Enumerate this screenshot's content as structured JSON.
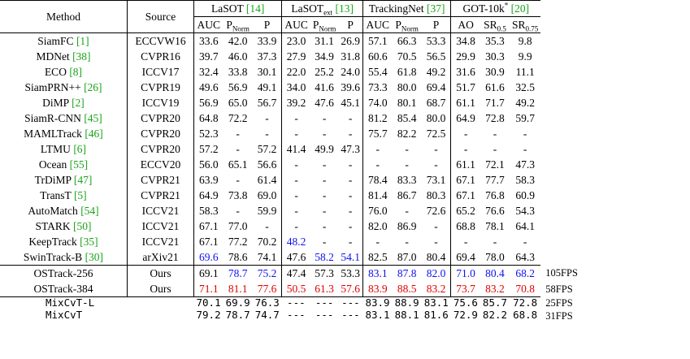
{
  "headers": {
    "method": "Method",
    "source": "Source",
    "groups": [
      {
        "name": "LaSOT",
        "sub": "",
        "sup": "",
        "cite": "[14]"
      },
      {
        "name": "LaSOT",
        "sub": "ext",
        "sup": "",
        "cite": "[13]"
      },
      {
        "name": "TrackingNet",
        "sub": "",
        "sup": "",
        "cite": "[37]"
      },
      {
        "name": "GOT-10k",
        "sub": "",
        "sup": "*",
        "cite": "[20]"
      }
    ],
    "metrics": [
      {
        "t": "AUC",
        "sub": ""
      },
      {
        "t": "P",
        "sub": "Norm"
      },
      {
        "t": "P",
        "sub": ""
      },
      {
        "t": "AUC",
        "sub": ""
      },
      {
        "t": "P",
        "sub": "Norm"
      },
      {
        "t": "P",
        "sub": ""
      },
      {
        "t": "AUC",
        "sub": ""
      },
      {
        "t": "P",
        "sub": "Norm"
      },
      {
        "t": "P",
        "sub": ""
      },
      {
        "t": "AO",
        "sub": ""
      },
      {
        "t": "SR",
        "sub": "0.5"
      },
      {
        "t": "SR",
        "sub": "0.75"
      }
    ]
  },
  "rows": [
    {
      "method": "SiamFC",
      "cite": "[1]",
      "source": "ECCVW16",
      "values": [
        "33.6",
        "42.0",
        "33.9",
        "23.0",
        "31.1",
        "26.9",
        "57.1",
        "66.3",
        "53.3",
        "34.8",
        "35.3",
        "9.8"
      ],
      "styles": {}
    },
    {
      "method": "MDNet",
      "cite": "[38]",
      "source": "CVPR16",
      "values": [
        "39.7",
        "46.0",
        "37.3",
        "27.9",
        "34.9",
        "31.8",
        "60.6",
        "70.5",
        "56.5",
        "29.9",
        "30.3",
        "9.9"
      ],
      "styles": {}
    },
    {
      "method": "ECO",
      "cite": "[8]",
      "source": "ICCV17",
      "values": [
        "32.4",
        "33.8",
        "30.1",
        "22.0",
        "25.2",
        "24.0",
        "55.4",
        "61.8",
        "49.2",
        "31.6",
        "30.9",
        "11.1"
      ],
      "styles": {}
    },
    {
      "method": "SiamPRN++",
      "cite": "[26]",
      "source": "CVPR19",
      "values": [
        "49.6",
        "56.9",
        "49.1",
        "34.0",
        "41.6",
        "39.6",
        "73.3",
        "80.0",
        "69.4",
        "51.7",
        "61.6",
        "32.5"
      ],
      "styles": {}
    },
    {
      "method": "DiMP",
      "cite": "[2]",
      "source": "ICCV19",
      "values": [
        "56.9",
        "65.0",
        "56.7",
        "39.2",
        "47.6",
        "45.1",
        "74.0",
        "80.1",
        "68.7",
        "61.1",
        "71.7",
        "49.2"
      ],
      "styles": {}
    },
    {
      "method": "SiamR-CNN",
      "cite": "[45]",
      "source": "CVPR20",
      "values": [
        "64.8",
        "72.2",
        "-",
        "-",
        "-",
        "-",
        "81.2",
        "85.4",
        "80.0",
        "64.9",
        "72.8",
        "59.7"
      ],
      "styles": {}
    },
    {
      "method": "MAMLTrack",
      "cite": "[46]",
      "source": "CVPR20",
      "values": [
        "52.3",
        "-",
        "-",
        "-",
        "-",
        "-",
        "75.7",
        "82.2",
        "72.5",
        "-",
        "-",
        "-"
      ],
      "styles": {}
    },
    {
      "method": "LTMU",
      "cite": "[6]",
      "source": "CVPR20",
      "values": [
        "57.2",
        "-",
        "57.2",
        "41.4",
        "49.9",
        "47.3",
        "-",
        "-",
        "-",
        "-",
        "-",
        "-"
      ],
      "styles": {}
    },
    {
      "method": "Ocean",
      "cite": "[55]",
      "source": "ECCV20",
      "values": [
        "56.0",
        "65.1",
        "56.6",
        "-",
        "-",
        "-",
        "-",
        "-",
        "-",
        "61.1",
        "72.1",
        "47.3"
      ],
      "styles": {}
    },
    {
      "method": "TrDiMP",
      "cite": "[47]",
      "source": "CVPR21",
      "values": [
        "63.9",
        "-",
        "61.4",
        "-",
        "-",
        "-",
        "78.4",
        "83.3",
        "73.1",
        "67.1",
        "77.7",
        "58.3"
      ],
      "styles": {}
    },
    {
      "method": "TransT",
      "cite": "[5]",
      "source": "CVPR21",
      "values": [
        "64.9",
        "73.8",
        "69.0",
        "-",
        "-",
        "-",
        "81.4",
        "86.7",
        "80.3",
        "67.1",
        "76.8",
        "60.9"
      ],
      "styles": {}
    },
    {
      "method": "AutoMatch",
      "cite": "[54]",
      "source": "ICCV21",
      "values": [
        "58.3",
        "-",
        "59.9",
        "-",
        "-",
        "-",
        "76.0",
        "-",
        "72.6",
        "65.2",
        "76.6",
        "54.3"
      ],
      "styles": {}
    },
    {
      "method": "STARK",
      "cite": "[50]",
      "source": "ICCV21",
      "values": [
        "67.1",
        "77.0",
        "-",
        "-",
        "-",
        "-",
        "82.0",
        "86.9",
        "-",
        "68.8",
        "78.1",
        "64.1"
      ],
      "styles": {}
    },
    {
      "method": "KeepTrack",
      "cite": "[35]",
      "source": "ICCV21",
      "values": [
        "67.1",
        "77.2",
        "70.2",
        "48.2",
        "-",
        "-",
        "-",
        "-",
        "-",
        "-",
        "-",
        "-"
      ],
      "styles": {
        "3": "blue"
      }
    },
    {
      "method": "SwinTrack-B",
      "cite": "[30]",
      "source": "arXiv21",
      "values": [
        "69.6",
        "78.6",
        "74.1",
        "47.6",
        "58.2",
        "54.1",
        "82.5",
        "87.0",
        "80.4",
        "69.4",
        "78.0",
        "64.3"
      ],
      "styles": {
        "0": "blue",
        "4": "blue",
        "5": "blue"
      }
    },
    {
      "method": "OSTrack-256",
      "cite": "",
      "source": "Ours",
      "values": [
        "69.1",
        "78.7",
        "75.2",
        "47.4",
        "57.3",
        "53.3",
        "83.1",
        "87.8",
        "82.0",
        "71.0",
        "80.4",
        "68.2"
      ],
      "styles": {
        "1": "blue",
        "2": "blue",
        "6": "blue",
        "7": "blue",
        "8": "blue",
        "9": "blue",
        "10": "blue",
        "11": "blue"
      }
    },
    {
      "method": "OSTrack-384",
      "cite": "",
      "source": "Ours",
      "values": [
        "71.1",
        "81.1",
        "77.6",
        "50.5",
        "61.3",
        "57.6",
        "83.9",
        "88.5",
        "83.2",
        "73.7",
        "83.2",
        "70.8"
      ],
      "styles": {
        "0": "red",
        "1": "red",
        "2": "red",
        "3": "red",
        "4": "red",
        "5": "red",
        "6": "red",
        "7": "red",
        "8": "red",
        "9": "red",
        "10": "red",
        "11": "red"
      }
    }
  ],
  "extra_rows": [
    {
      "method": "MixCvT-L",
      "values": [
        "70.1",
        "69.9",
        "76.3",
        "---",
        "---",
        "---",
        "83.9",
        "88.9",
        "83.1",
        "75.6",
        "85.7",
        "72.8"
      ],
      "fps": "25FPS"
    },
    {
      "method": "MixCvT",
      "values": [
        "79.2",
        "78.7",
        "74.7",
        "---",
        "---",
        "---",
        "83.1",
        "88.1",
        "81.6",
        "72.9",
        "82.2",
        "68.8"
      ],
      "fps": "31FPS"
    }
  ],
  "side_fps": [
    "105FPS",
    "58FPS"
  ]
}
